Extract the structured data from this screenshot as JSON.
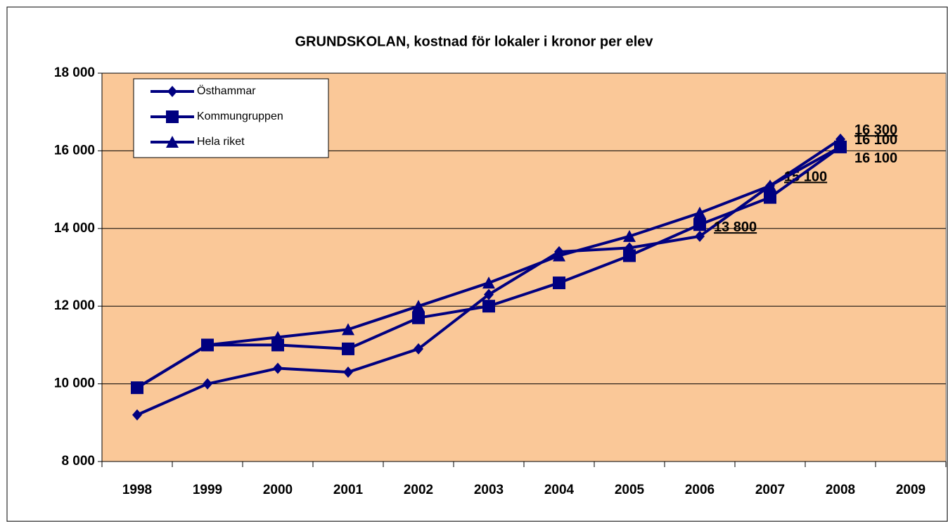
{
  "chart_data": {
    "type": "line",
    "title": "GRUNDSKOLAN, kostnad för lokaler i kronor per elev",
    "categories": [
      "1998",
      "1999",
      "2000",
      "2001",
      "2002",
      "2003",
      "2004",
      "2005",
      "2006",
      "2007",
      "2008",
      "2009"
    ],
    "series": [
      {
        "name": "Östhammar",
        "color": "#000080",
        "marker": "diamond",
        "values": [
          9200,
          10000,
          10400,
          10300,
          10900,
          12300,
          13400,
          13500,
          13800,
          15100,
          16300,
          null
        ],
        "value_labels": [
          null,
          null,
          null,
          null,
          null,
          null,
          null,
          null,
          "13 800",
          "15 100",
          "16 300",
          null
        ]
      },
      {
        "name": "Kommungruppen",
        "color": "#000080",
        "marker": "square",
        "values": [
          9900,
          11000,
          11000,
          10900,
          11700,
          12000,
          12600,
          13300,
          14100,
          14800,
          16100,
          null
        ],
        "value_labels": [
          null,
          null,
          null,
          null,
          null,
          null,
          null,
          null,
          null,
          null,
          "16 100",
          null
        ]
      },
      {
        "name": "Hela riket",
        "color": "#000080",
        "marker": "triangle",
        "values": [
          9900,
          11000,
          11200,
          11400,
          12000,
          12600,
          13300,
          13800,
          14400,
          15100,
          16100,
          null
        ],
        "value_labels": [
          null,
          null,
          null,
          null,
          null,
          null,
          null,
          null,
          null,
          null,
          "16 100",
          null
        ]
      }
    ],
    "ylim": [
      8000,
      18000
    ],
    "yticks": [
      {
        "value": 8000,
        "label": "8 000"
      },
      {
        "value": 10000,
        "label": "10 000"
      },
      {
        "value": 12000,
        "label": "12 000"
      },
      {
        "value": 14000,
        "label": "14 000"
      },
      {
        "value": 16000,
        "label": "16 000"
      },
      {
        "value": 18000,
        "label": "18 000"
      }
    ],
    "grid": true,
    "legend": "top-left",
    "plot_background": "#fac898"
  }
}
